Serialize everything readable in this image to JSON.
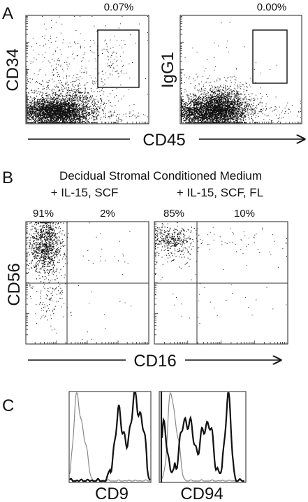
{
  "figure": {
    "panel_a": {
      "letter": "A",
      "left_gate_pct": "0.07%",
      "right_gate_pct": "0.00%",
      "left_ylabel": "CD34",
      "right_ylabel": "IgG1",
      "xlabel": "CD45"
    },
    "panel_b": {
      "letter": "B",
      "title": "Decidual Stromal Conditioned Medium",
      "left_condition": "+ IL-15, SCF",
      "right_condition": "+ IL-15, SCF, FL",
      "left_ul_pct": "91%",
      "left_ur_pct": "2%",
      "right_ul_pct": "85%",
      "right_ur_pct": "10%",
      "ylabel": "CD56",
      "xlabel": "CD16"
    },
    "panel_c": {
      "letter": "C",
      "left_xlabel": "CD9",
      "right_xlabel": "CD94"
    }
  },
  "chart_data": [
    {
      "type": "scatter",
      "panel": "A-left",
      "xlabel": "CD45",
      "ylabel": "CD34",
      "gate_percent": 0.07,
      "populations": [
        {
          "x_center": 0.25,
          "y_center": 0.09,
          "share": 0.97
        },
        {
          "x_center": 0.82,
          "y_center": 0.55,
          "share": 0.01
        }
      ]
    },
    {
      "type": "scatter",
      "panel": "A-right",
      "xlabel": "CD45",
      "ylabel": "IgG1",
      "gate_percent": 0.0,
      "populations": [
        {
          "x_center": 0.38,
          "y_center": 0.16,
          "share": 0.98
        }
      ]
    },
    {
      "type": "scatter",
      "panel": "B-left",
      "xlabel": "CD16",
      "ylabel": "CD56",
      "condition": "+ IL-15, SCF",
      "quadrant_percent": {
        "upper_left": 91,
        "upper_right": 2
      }
    },
    {
      "type": "scatter",
      "panel": "B-right",
      "xlabel": "CD16",
      "ylabel": "CD56",
      "condition": "+ IL-15, SCF, FL",
      "quadrant_percent": {
        "upper_left": 85,
        "upper_right": 10
      }
    },
    {
      "type": "line",
      "panel": "C-left",
      "xlabel": "CD9"
    },
    {
      "type": "line",
      "panel": "C-right",
      "xlabel": "CD94"
    }
  ]
}
